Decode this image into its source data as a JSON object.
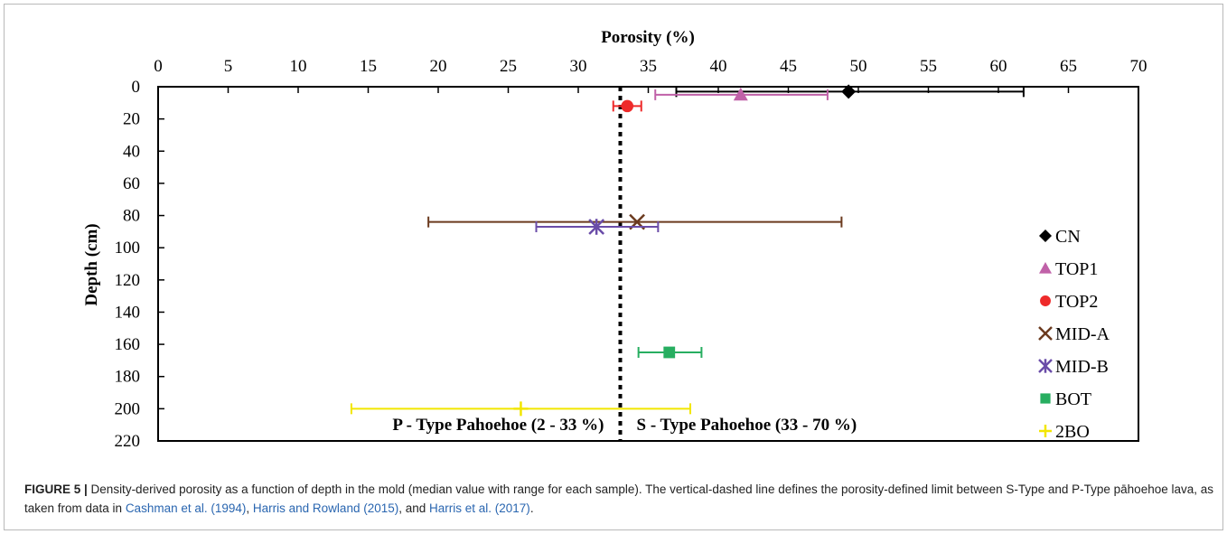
{
  "chart_data": {
    "type": "scatter",
    "xlabel": "Porosity (%)",
    "ylabel": "Depth (cm)",
    "xlim": [
      0,
      70
    ],
    "ylim": [
      0,
      220
    ],
    "x_ticks": [
      "0",
      "5",
      "10",
      "15",
      "20",
      "25",
      "30",
      "35",
      "40",
      "45",
      "50",
      "55",
      "60",
      "65",
      "70"
    ],
    "y_ticks": [
      "0",
      "20",
      "40",
      "60",
      "80",
      "100",
      "120",
      "140",
      "160",
      "180",
      "200",
      "220"
    ],
    "x_axis_position": "top",
    "y_axis_inverted": true,
    "grid": false,
    "legend_position": "right",
    "reference_line": {
      "x": 33,
      "style": "dashed",
      "color": "#000000"
    },
    "annotations": {
      "left": "P - Type Pahoehoe (2 - 33 %)",
      "right": "S - Type Pahoehoe (33 - 70 %)"
    },
    "series": [
      {
        "name": "CN",
        "marker": "diamond",
        "color": "#000000",
        "x": 49.3,
        "y": 3,
        "xmin": 37,
        "xmax": 61.8
      },
      {
        "name": "TOP1",
        "marker": "triangle",
        "color": "#c061a8",
        "x": 41.6,
        "y": 5,
        "xmin": 35.5,
        "xmax": 47.8
      },
      {
        "name": "TOP2",
        "marker": "circle",
        "color": "#ee2a2a",
        "x": 33.5,
        "y": 12,
        "xmin": 32.5,
        "xmax": 34.5
      },
      {
        "name": "MID-A",
        "marker": "x",
        "color": "#6b3a1e",
        "x": 34.2,
        "y": 84,
        "xmin": 19.3,
        "xmax": 48.8
      },
      {
        "name": "MID-B",
        "marker": "star",
        "color": "#6a4ca8",
        "x": 31.3,
        "y": 87,
        "xmin": 27,
        "xmax": 35.7
      },
      {
        "name": "BOT",
        "marker": "square",
        "color": "#27ae60",
        "x": 36.5,
        "y": 165,
        "xmin": 34.3,
        "xmax": 38.8
      },
      {
        "name": "2BO",
        "marker": "plus",
        "color": "#f2e600",
        "x": 25.9,
        "y": 200,
        "xmin": 13.8,
        "xmax": 38
      }
    ]
  },
  "caption": {
    "label": "FIGURE 5 |",
    "text_before": " Density-derived porosity as a function of depth in the mold (median value with range for each sample). The vertical-dashed line defines the porosity-defined limit between S-Type and P-Type pāhoehoe lava, as taken from data in ",
    "ref1": "Cashman et al. (1994)",
    "sep1": ", ",
    "ref2": "Harris and Rowland (2015)",
    "sep2": ", and ",
    "ref3": "Harris et al. (2017)",
    "end": "."
  }
}
